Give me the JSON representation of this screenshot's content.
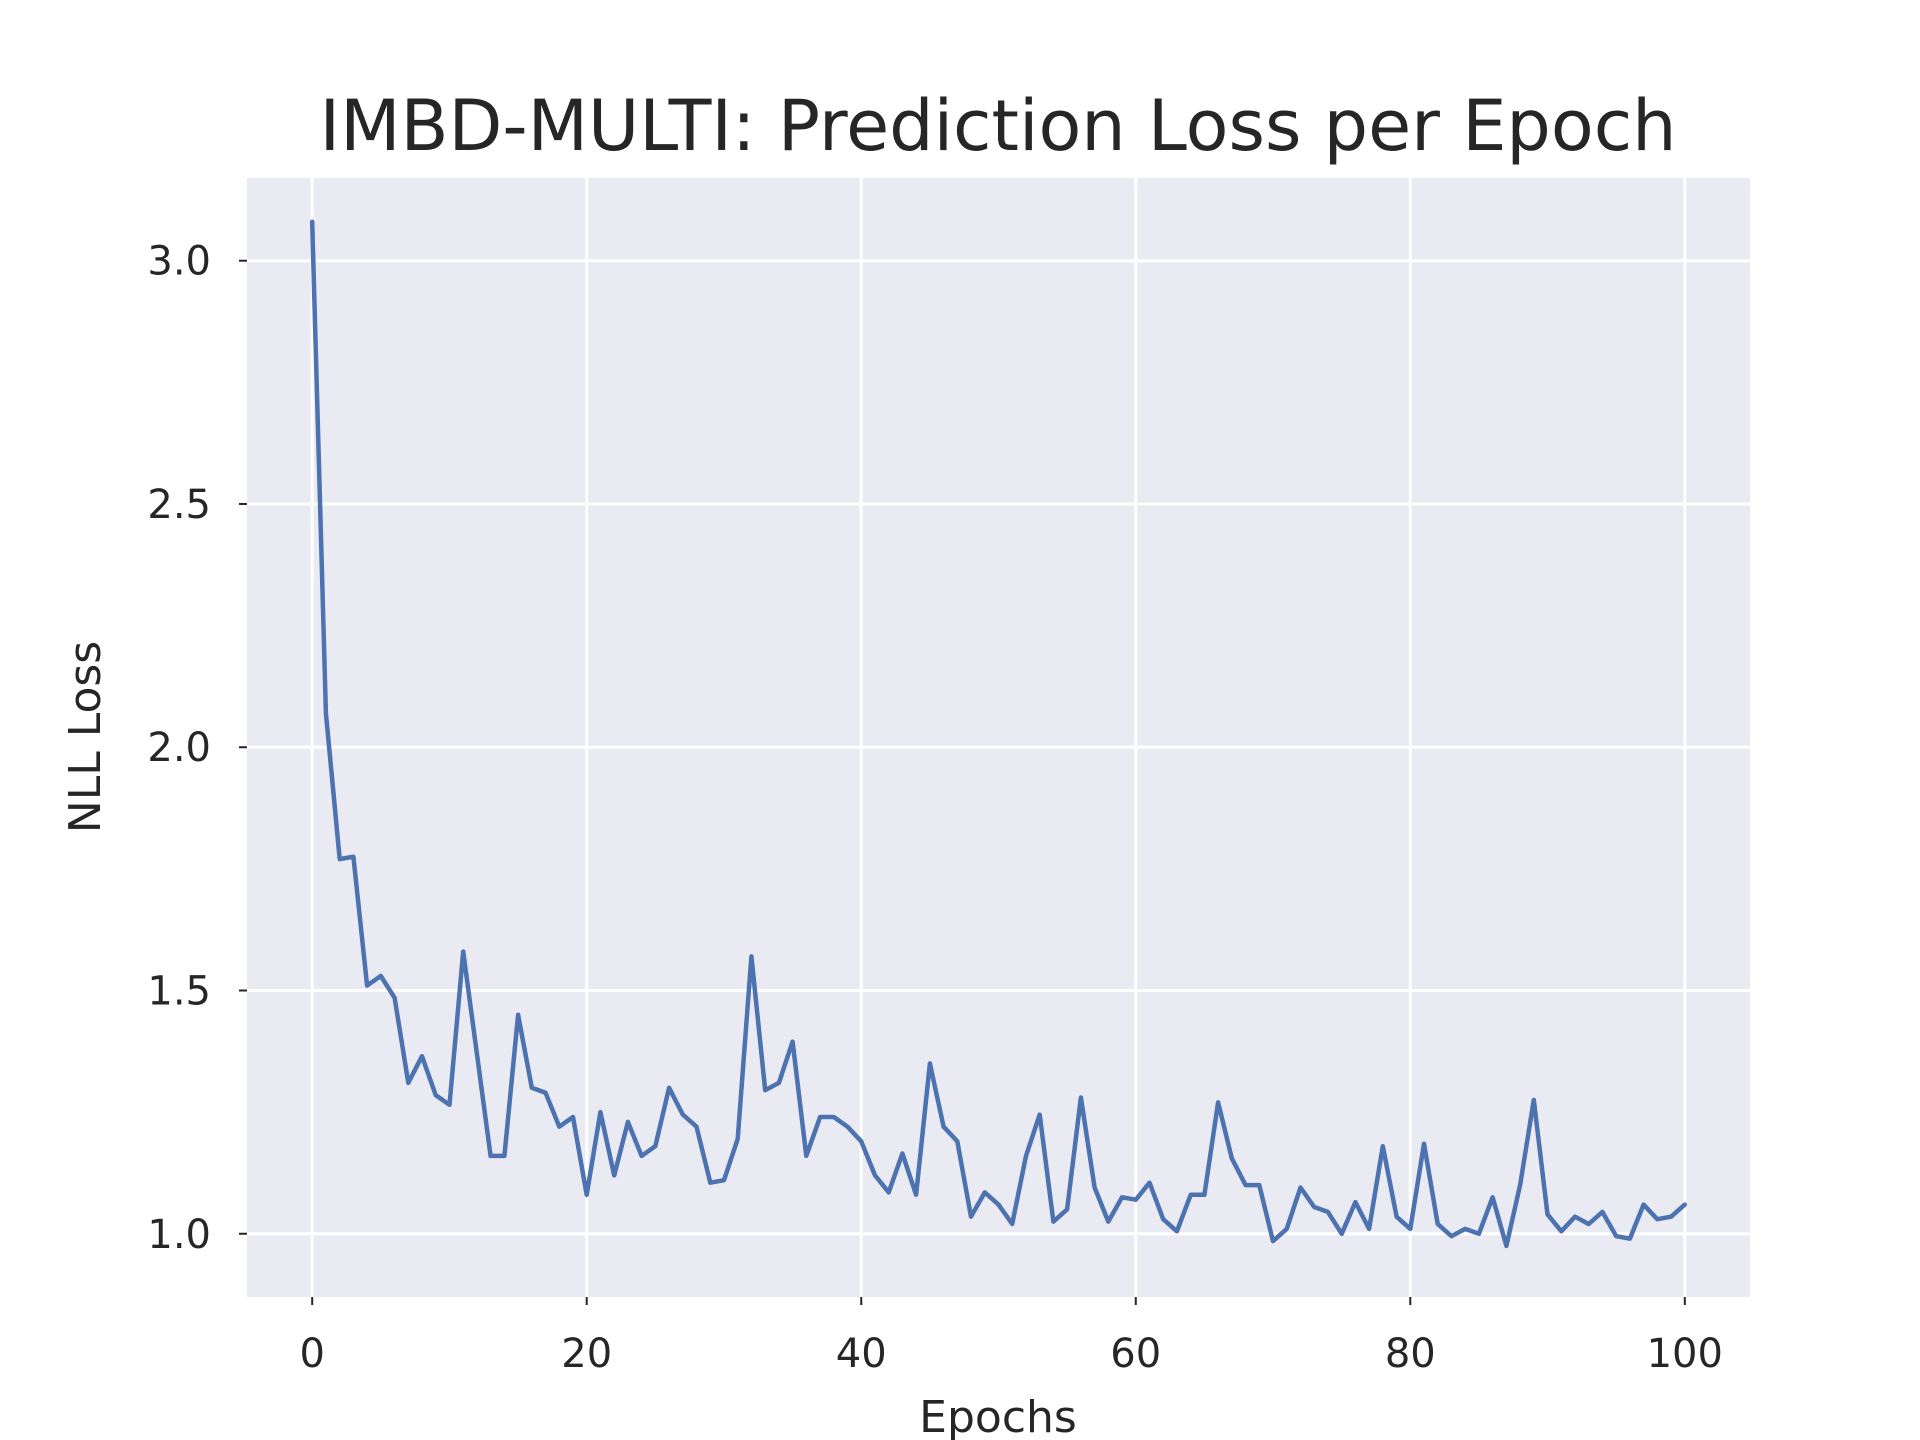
{
  "chart_data": {
    "type": "line",
    "title": "IMBD-MULTI: Prediction Loss per Epoch",
    "xlabel": "Epochs",
    "ylabel": "NLL Loss",
    "xlim": [
      -4.75,
      104.75
    ],
    "ylim": [
      0.87,
      3.17
    ],
    "xticks": [
      0,
      20,
      40,
      60,
      80,
      100
    ],
    "xtick_labels": [
      "0",
      "20",
      "40",
      "60",
      "80",
      "100"
    ],
    "yticks": [
      1.0,
      1.5,
      2.0,
      2.5,
      3.0
    ],
    "ytick_labels": [
      "1.0",
      "1.5",
      "2.0",
      "2.5",
      "3.0"
    ],
    "grid": true,
    "background": "#eaeaf2",
    "series": [
      {
        "color": "#4c72b0",
        "x": [
          0,
          1,
          2,
          3,
          4,
          5,
          6,
          7,
          8,
          9,
          10,
          11,
          12,
          13,
          14,
          15,
          16,
          17,
          18,
          19,
          20,
          21,
          22,
          23,
          24,
          25,
          26,
          27,
          28,
          29,
          30,
          31,
          32,
          33,
          34,
          35,
          36,
          37,
          38,
          39,
          40,
          41,
          42,
          43,
          44,
          45,
          46,
          47,
          48,
          49,
          50,
          51,
          52,
          53,
          54,
          55,
          56,
          57,
          58,
          59,
          60,
          61,
          62,
          63,
          64,
          65,
          66,
          67,
          68,
          69,
          70,
          71,
          72,
          73,
          74,
          75,
          76,
          77,
          78,
          79,
          80,
          81,
          82,
          83,
          84,
          85,
          86,
          87,
          88,
          89,
          90,
          91,
          92,
          93,
          94,
          95,
          96,
          97,
          98,
          99,
          100
        ],
        "values": [
          3.08,
          2.07,
          1.77,
          1.775,
          1.51,
          1.53,
          1.485,
          1.31,
          1.365,
          1.285,
          1.265,
          1.58,
          1.37,
          1.16,
          1.16,
          1.45,
          1.3,
          1.29,
          1.22,
          1.24,
          1.08,
          1.25,
          1.12,
          1.23,
          1.16,
          1.18,
          1.3,
          1.245,
          1.22,
          1.105,
          1.11,
          1.195,
          1.57,
          1.295,
          1.31,
          1.395,
          1.16,
          1.24,
          1.24,
          1.22,
          1.19,
          1.12,
          1.085,
          1.165,
          1.08,
          1.35,
          1.22,
          1.19,
          1.035,
          1.085,
          1.06,
          1.02,
          1.16,
          1.245,
          1.025,
          1.05,
          1.28,
          1.095,
          1.025,
          1.075,
          1.07,
          1.105,
          1.03,
          1.005,
          1.08,
          1.08,
          1.27,
          1.155,
          1.1,
          1.1,
          0.985,
          1.01,
          1.095,
          1.055,
          1.045,
          1.0,
          1.065,
          1.01,
          1.18,
          1.035,
          1.01,
          1.185,
          1.02,
          0.995,
          1.01,
          1.0,
          1.075,
          0.975,
          1.1,
          1.275,
          1.04,
          1.005,
          1.035,
          1.02,
          1.045,
          0.995,
          0.99,
          1.06,
          1.03,
          1.035,
          1.06
        ]
      }
    ]
  }
}
